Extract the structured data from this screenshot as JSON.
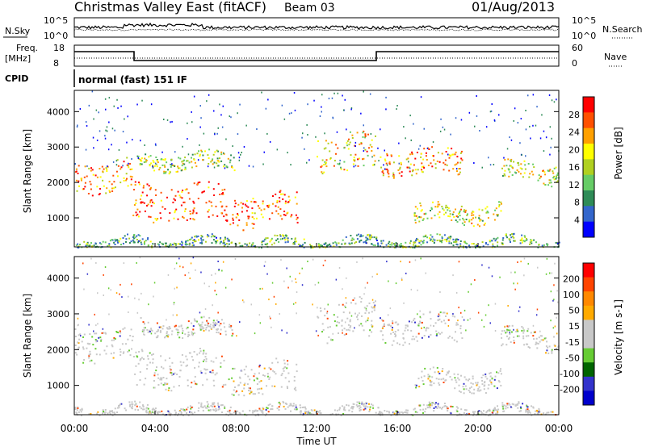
{
  "header": {
    "title": "Christmas Valley East (fitACF)",
    "beam": "Beam 03",
    "date": "01/Aug/2013"
  },
  "top_panels": {
    "nsky_label": "N.Sky",
    "nsky_ticks": [
      "10^5",
      "10^0"
    ],
    "nsearch_label": "N.Search",
    "nsearch_ticks": [
      "10^5",
      "10^0"
    ],
    "freq_label_1": "Freq.",
    "freq_label_2": "[MHz]",
    "freq_ticks": [
      "18",
      "8"
    ],
    "nave_label": "Nave",
    "nave_ticks": [
      "60",
      "0"
    ],
    "cpid_label": "CPID",
    "cpid_value": "normal (fast) 151 IF"
  },
  "chart_data": [
    {
      "type": "heatmap",
      "name": "power",
      "ylabel": "Slant Range [km]",
      "yticks": [
        "4000",
        "3000",
        "2000",
        "1000"
      ],
      "ylim": [
        180,
        4600
      ],
      "colorbar_label": "Power [dB]",
      "colorbar_ticks": [
        "28",
        "24",
        "20",
        "16",
        "12",
        "8",
        "4"
      ],
      "colorbar_colors": [
        "#0000ff",
        "#3366cc",
        "#2e8b57",
        "#66cc66",
        "#b0d020",
        "#ffff00",
        "#ffa000",
        "#ff5000",
        "#ff0000"
      ]
    },
    {
      "type": "heatmap",
      "name": "velocity",
      "ylabel": "Slant Range [km]",
      "yticks": [
        "4000",
        "3000",
        "2000",
        "1000"
      ],
      "ylim": [
        180,
        4600
      ],
      "colorbar_label": "Velocity [m s-1]",
      "colorbar_ticks": [
        "200",
        "100",
        "50",
        "15",
        "-15",
        "-50",
        "-100",
        "-200"
      ],
      "colorbar_colors": [
        "#0000cc",
        "#3333cc",
        "#006400",
        "#66cc33",
        "#c8c8c8",
        "#c8c8c8",
        "#ffaa00",
        "#ff8800",
        "#ff4400",
        "#ff0000"
      ]
    }
  ],
  "x_axis": {
    "label": "Time UT",
    "ticks": [
      "00:00",
      "04:00",
      "08:00",
      "12:00",
      "16:00",
      "20:00",
      "00:00"
    ]
  }
}
